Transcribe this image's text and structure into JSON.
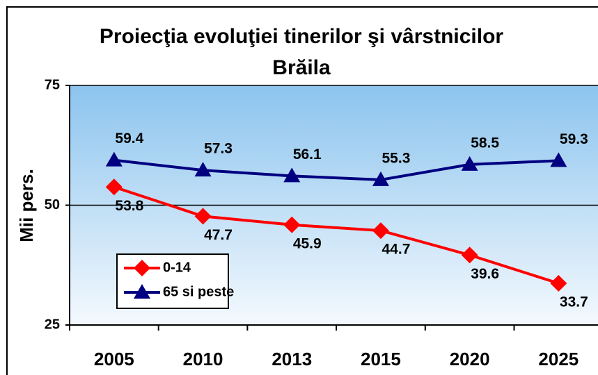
{
  "chart_data": {
    "type": "line",
    "title": [
      "Proiecţia evoluţiei tinerilor şi vârstnicilor",
      "Brăila"
    ],
    "y_label": "Mii pers.",
    "categories": [
      "2005",
      "2010",
      "2013",
      "2015",
      "2020",
      "2025"
    ],
    "series": [
      {
        "name": "0-14",
        "color": "#ff0000",
        "marker": "diamond",
        "values": [
          53.8,
          47.7,
          45.9,
          44.7,
          39.6,
          33.7
        ]
      },
      {
        "name": "65 si peste",
        "color": "#000080",
        "marker": "triangle",
        "values": [
          59.4,
          57.3,
          56.1,
          55.3,
          58.5,
          59.3
        ]
      }
    ],
    "ylim": [
      25,
      75
    ],
    "yticks": [
      25,
      50,
      75
    ],
    "grid": true
  }
}
